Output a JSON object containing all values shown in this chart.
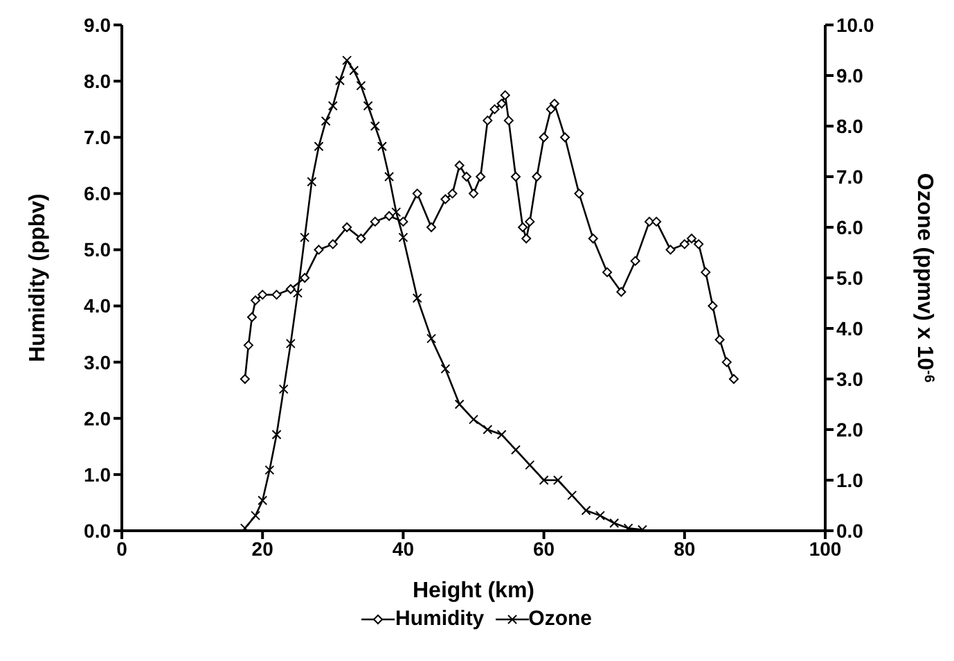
{
  "chart_data": {
    "type": "line",
    "xlabel": "Height (km)",
    "ylabel": "Humidity (ppbv)",
    "y2label": "Ozone (ppmv) x 10$^{-6}$",
    "xlim": [
      0,
      100
    ],
    "xticks": [
      0,
      20,
      40,
      60,
      80,
      100
    ],
    "ylim": [
      0,
      9
    ],
    "yticks": [
      {
        "value": 0,
        "label": "0.0"
      },
      {
        "value": 1,
        "label": "1.0"
      },
      {
        "value": 2,
        "label": "2.0"
      },
      {
        "value": 3,
        "label": "3.0"
      },
      {
        "value": 4,
        "label": "4.0"
      },
      {
        "value": 5,
        "label": "5.0"
      },
      {
        "value": 6,
        "label": "6.0"
      },
      {
        "value": 7,
        "label": "7.0"
      },
      {
        "value": 8,
        "label": "8.0"
      },
      {
        "value": 9,
        "label": "9.0"
      }
    ],
    "y2lim": [
      0,
      10
    ],
    "y2ticks": [
      {
        "value": 0,
        "label": "0.0"
      },
      {
        "value": 1,
        "label": "1.0"
      },
      {
        "value": 2,
        "label": "2.0"
      },
      {
        "value": 3,
        "label": "3.0"
      },
      {
        "value": 4,
        "label": "4.0"
      },
      {
        "value": 5,
        "label": "5.0"
      },
      {
        "value": 6,
        "label": "6.0"
      },
      {
        "value": 7,
        "label": "7.0"
      },
      {
        "value": 8,
        "label": "8.0"
      },
      {
        "value": 9,
        "label": "9.0"
      },
      {
        "value": 10,
        "label": "10.0"
      }
    ],
    "grid": false,
    "legend": "bottom",
    "line_style": "solid",
    "series": [
      {
        "name": "Humidity",
        "color": "#000000",
        "marker": "diamond",
        "x": [
          17.5,
          18,
          18.5,
          19,
          20,
          22,
          24,
          26,
          28,
          30,
          32,
          34,
          36,
          38,
          40,
          42,
          44,
          46,
          47,
          48,
          49,
          50,
          51,
          52,
          53,
          54,
          54.5,
          55,
          56,
          57,
          57.5,
          58,
          59,
          60,
          61,
          61.5,
          63,
          65,
          67,
          69,
          71,
          73,
          75,
          76,
          78,
          80,
          81,
          82,
          83,
          84,
          85,
          86,
          87
        ],
        "values": [
          2.7,
          3.3,
          3.8,
          4.1,
          4.2,
          4.2,
          4.3,
          4.5,
          5.0,
          5.1,
          5.4,
          5.2,
          5.5,
          5.6,
          5.5,
          6.0,
          5.4,
          5.9,
          6.0,
          6.5,
          6.3,
          6.0,
          6.3,
          7.3,
          7.5,
          7.6,
          7.75,
          7.3,
          6.3,
          5.4,
          5.2,
          5.5,
          6.3,
          7.0,
          7.5,
          7.6,
          7.0,
          6.0,
          5.2,
          4.6,
          4.25,
          4.8,
          5.5,
          5.5,
          5.0,
          5.1,
          5.2,
          5.1,
          4.6,
          4.0,
          3.4,
          3.0,
          2.7
        ]
      },
      {
        "name": "Ozone",
        "color": "#000000",
        "marker": "cross",
        "axis": "y2",
        "x": [
          17.5,
          19,
          20,
          21,
          22,
          23,
          24,
          25,
          26,
          27,
          28,
          29,
          30,
          31,
          32,
          33,
          34,
          35,
          36,
          37,
          38,
          39,
          40,
          42,
          44,
          46,
          48,
          50,
          52,
          54,
          56,
          58,
          60,
          62,
          64,
          66,
          68,
          70,
          72,
          74
        ],
        "values": [
          0.05,
          0.3,
          0.6,
          1.2,
          1.9,
          2.8,
          3.7,
          4.7,
          5.8,
          6.9,
          7.6,
          8.1,
          8.4,
          8.9,
          9.3,
          9.1,
          8.8,
          8.4,
          8.0,
          7.6,
          7.0,
          6.3,
          5.8,
          4.6,
          3.8,
          3.2,
          2.5,
          2.2,
          2.0,
          1.9,
          1.6,
          1.3,
          1.0,
          1.0,
          0.7,
          0.4,
          0.3,
          0.15,
          0.05,
          0.02
        ]
      }
    ]
  }
}
